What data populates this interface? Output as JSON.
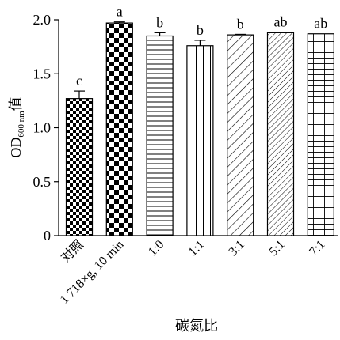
{
  "chart_data": {
    "type": "bar",
    "title": "",
    "xlabel": "碳氮比",
    "ylabel": {
      "main": "OD",
      "subscript": "600 nm",
      "suffix": "值"
    },
    "ylim": [
      0,
      2.0
    ],
    "yticks": [
      "0",
      "0.5",
      "1.0",
      "1.5",
      "2.0"
    ],
    "ytick_values": [
      0,
      0.5,
      1.0,
      1.5,
      2.0
    ],
    "grid": false,
    "categories": [
      "对照",
      "1 718×g, 10 min",
      "1:0",
      "1:1",
      "3:1",
      "5:1",
      "7:1"
    ],
    "values": [
      1.27,
      1.97,
      1.85,
      1.76,
      1.86,
      1.88,
      1.87
    ],
    "errors": [
      0.07,
      0.01,
      0.03,
      0.05,
      0.005,
      0.005,
      0.0
    ],
    "significance": [
      "c",
      "a",
      "b",
      "b",
      "b",
      "ab",
      "ab"
    ],
    "patterns": [
      "checker-small",
      "checker-large",
      "horizontal-lines",
      "vertical-lines",
      "diagonal-lines",
      "diagonal-lines-dense",
      "grid-lines"
    ]
  }
}
